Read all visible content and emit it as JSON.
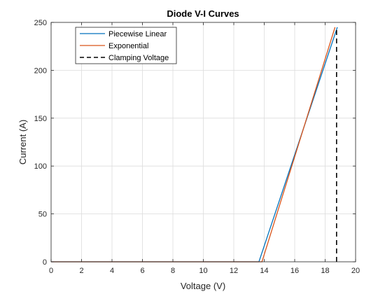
{
  "chart_data": {
    "type": "line",
    "title": "Diode V-I Curves",
    "xlabel": "Voltage (V)",
    "ylabel": "Current (A)",
    "xlim": [
      0,
      20
    ],
    "ylim": [
      0,
      250
    ],
    "xticks": [
      "0",
      "2",
      "4",
      "6",
      "8",
      "10",
      "12",
      "14",
      "16",
      "18",
      "20"
    ],
    "yticks": [
      "0",
      "50",
      "100",
      "150",
      "200",
      "250"
    ],
    "grid": true,
    "legend_position": "top-left",
    "series": [
      {
        "name": "Piecewise Linear",
        "color": "#0072BD",
        "dash": "solid",
        "x": [
          0,
          13.65,
          18.8
        ],
        "y": [
          0,
          0,
          245
        ]
      },
      {
        "name": "Exponential",
        "color": "#D95319",
        "dash": "solid",
        "x": [
          0,
          13.85,
          18.65
        ],
        "y": [
          0,
          0,
          245
        ]
      },
      {
        "name": "Clamping Voltage",
        "color": "#000000",
        "dash": "dashed",
        "x": [
          18.75,
          18.75
        ],
        "y": [
          0,
          245
        ]
      }
    ]
  }
}
